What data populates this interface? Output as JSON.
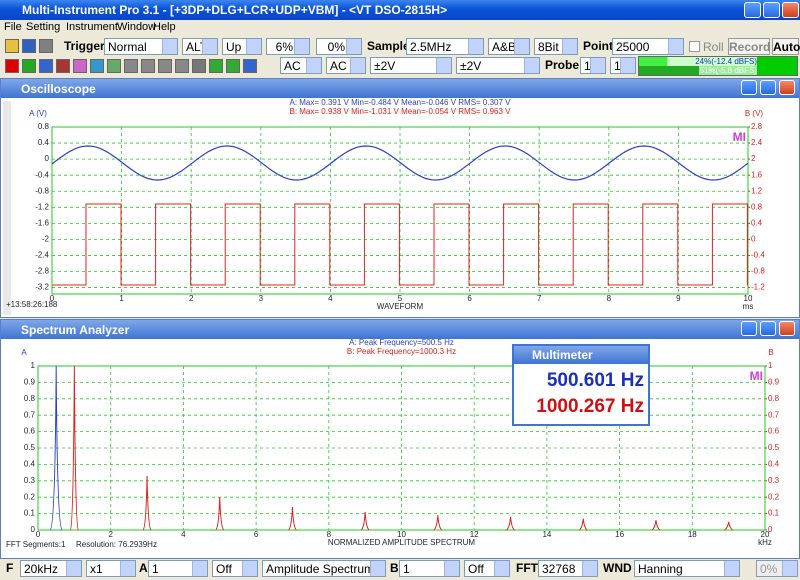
{
  "window": {
    "title": "Multi-Instrument Pro 3.1 - [+3DP+DLG+LCR+UDP+VBM] - <VT DSO-2815H>"
  },
  "menu": [
    "File",
    "Setting",
    "Instrument",
    "Window",
    "Help"
  ],
  "toolbar1": {
    "trigger": "Trigger",
    "mode": "Normal",
    "channel": "ALT",
    "edge": "Up",
    "level": "6%",
    "delay": "0%",
    "sample": "Sample",
    "rate": "2.5MHz",
    "source": "A&B",
    "bits": "8Bit",
    "point": "Point",
    "points": "25000",
    "roll": "Roll",
    "record": "Record",
    "auto": "Auto"
  },
  "toolbar2": {
    "coupling_a": "AC",
    "coupling_b": "AC",
    "range_a": "±2V",
    "range_b": "±2V",
    "probe": "Probe",
    "probe_a": "1",
    "probe_b": "1",
    "meter_a": "24%(-12.4 dBFS)",
    "meter_b": "51%(-5.8 dBFS)"
  },
  "multimeter": {
    "title": "Multimeter",
    "reading_a": "500.601 Hz",
    "reading_b": "1000.267 Hz"
  },
  "bottom_bar": {
    "f": "F",
    "range": "20kHz",
    "zoom": "x1",
    "a": "A",
    "a_gain": "1",
    "a_off": "Off",
    "function": "Amplitude Spectrum",
    "b": "B",
    "b_gain": "1",
    "b_off": "Off",
    "fft": "FFT",
    "fft_size": "32768",
    "wnd": "WND",
    "window_fn": "Hanning",
    "overlap": "0%"
  },
  "chart_data": [
    {
      "type": "line",
      "title": "Oscilloscope",
      "y_label": "A (V)",
      "y2_label": "B (V)",
      "x_label": "WAVEFORM",
      "x_unit": "ms",
      "timestamp": "+13:58:26:188",
      "logo": "MI",
      "stats": [
        "A: Max= 0.391 V  Min=-0.484 V  Mean=-0.046 V  RMS= 0.307 V",
        "B: Max= 0.938 V  Min=-1.031 V  Mean=-0.054 V  RMS= 0.963 V"
      ],
      "colors": [
        "#2b3fd0",
        "#e02020"
      ],
      "xlim": [
        0,
        10
      ],
      "xticks": [
        0,
        1,
        2,
        3,
        4,
        5,
        6,
        7,
        8,
        9,
        10
      ],
      "ylim": [
        -3.36,
        0.8
      ],
      "yticks": [
        0.8,
        0.4,
        0,
        -0.4,
        -0.8,
        -1.2,
        -1.6,
        -2,
        -2.4,
        -2.8,
        -3.2
      ],
      "y2lim": [
        -1.36,
        2.8
      ],
      "y2ticks": [
        2.8,
        2.4,
        2,
        1.6,
        1.2,
        0.8,
        0.4,
        0,
        -0.4,
        -0.8,
        -1.2
      ],
      "grid": true
    },
    {
      "type": "spectrum",
      "title": "Spectrum Analyzer",
      "y_label": "A",
      "y2_label": "B",
      "x_label": "NORMALIZED AMPLITUDE SPECTRUM",
      "x_unit": "kHz",
      "footer_left": "FFT Segments:1",
      "resolution": "Resolution: 76.2939Hz",
      "logo": "MI",
      "stats": [
        "A: Peak Frequency=500.5 Hz",
        "B: Peak Frequency=1000.3 Hz"
      ],
      "colors": [
        "#2b3fd0",
        "#e02020"
      ],
      "series": [
        {
          "color": "#2b3fd0",
          "x": [
            0.5
          ],
          "values": [
            1
          ]
        },
        {
          "color": "#e02020",
          "x": [
            1,
            3,
            5,
            7,
            9,
            11,
            13,
            15,
            17,
            19
          ],
          "values": [
            1,
            0.33,
            0.2,
            0.14,
            0.11,
            0.09,
            0.08,
            0.07,
            0.06,
            0.05
          ]
        }
      ],
      "xlim": [
        0,
        20
      ],
      "xticks": [
        0,
        2,
        4,
        6,
        8,
        10,
        12,
        14,
        16,
        18,
        20
      ],
      "ylim": [
        0,
        1
      ],
      "yticks": [
        0,
        0.1,
        0.2,
        0.3,
        0.4,
        0.5,
        0.6,
        0.7,
        0.8,
        0.9,
        1
      ],
      "y2lim": [
        0,
        1
      ],
      "y2ticks": [
        0,
        0.1,
        0.2,
        0.3,
        0.4,
        0.5,
        0.6,
        0.7,
        0.8,
        0.9,
        1
      ],
      "grid": true
    }
  ]
}
